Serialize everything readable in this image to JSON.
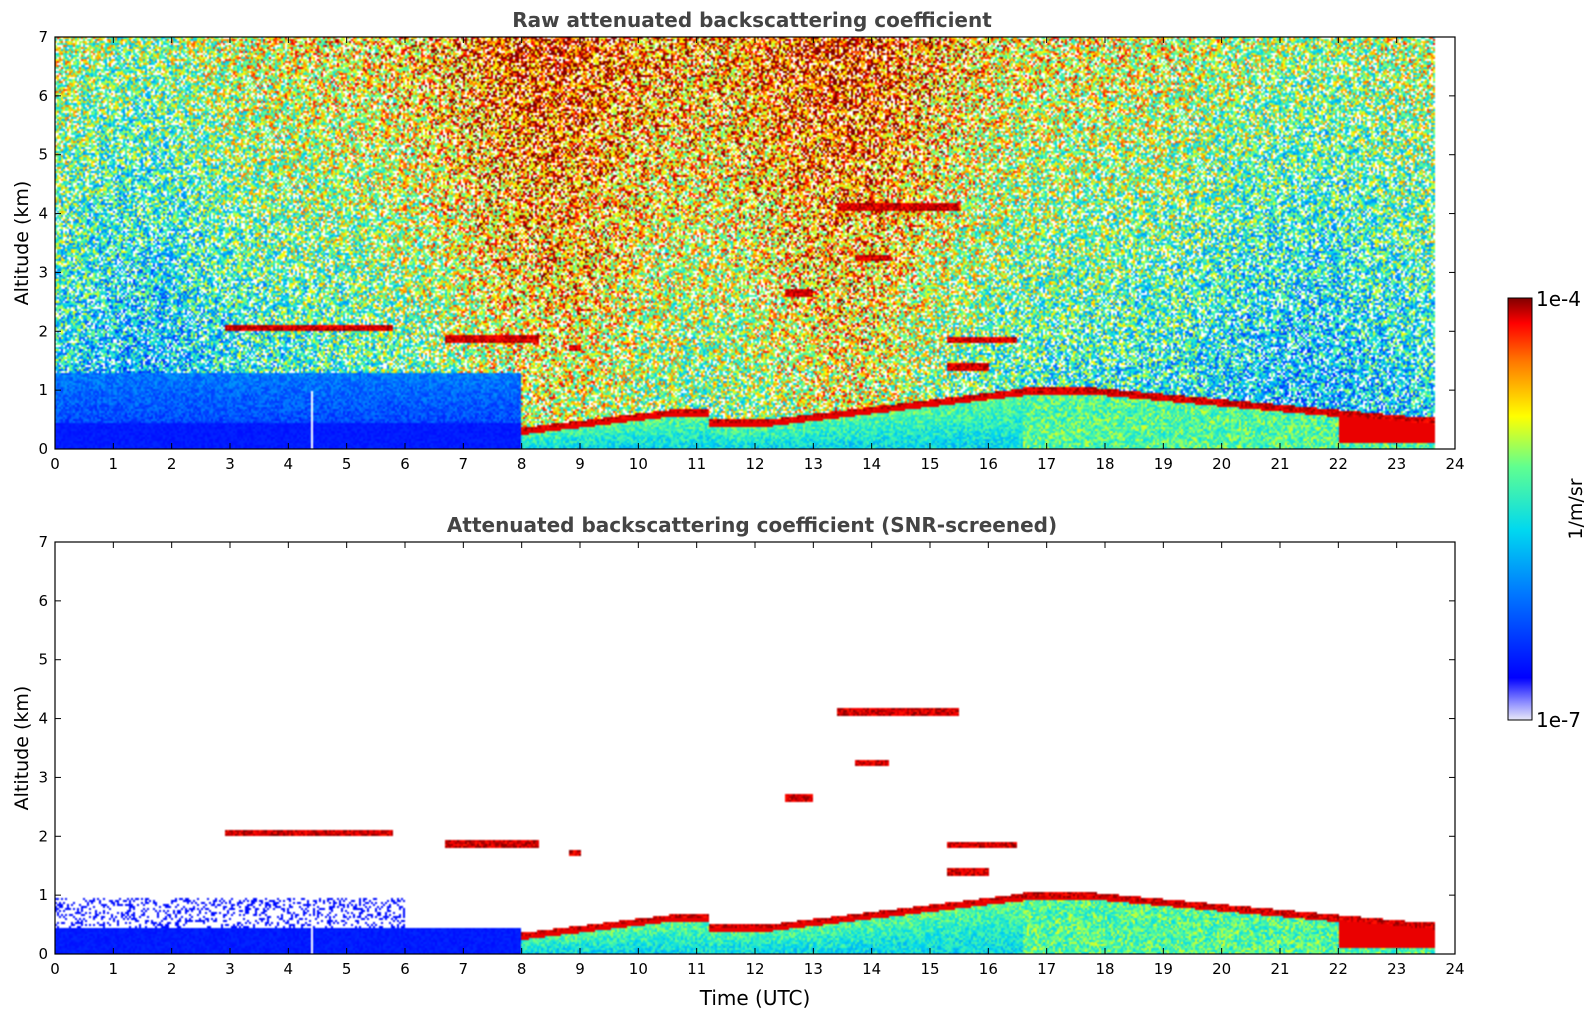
{
  "chart_data": [
    {
      "type": "heatmap",
      "title": "Raw attenuated backscattering coefficient",
      "xlabel": "",
      "ylabel": "Altitude (km)",
      "xlim": [
        0,
        24
      ],
      "ylim": [
        0,
        7
      ],
      "xticks": [
        "0",
        "1",
        "2",
        "3",
        "4",
        "5",
        "6",
        "7",
        "8",
        "9",
        "10",
        "11",
        "12",
        "13",
        "14",
        "15",
        "16",
        "17",
        "18",
        "19",
        "20",
        "21",
        "22",
        "23",
        "24"
      ],
      "yticks": [
        "0",
        "1",
        "2",
        "3",
        "4",
        "5",
        "6",
        "7"
      ],
      "data_end_time": 23.65,
      "features": [
        {
          "name": "aerosol layer",
          "t0": 2.9,
          "t1": 5.8,
          "alt": 2.05
        },
        {
          "name": "aerosol layer",
          "t0": 6.7,
          "t1": 8.3,
          "alt": 1.87
        },
        {
          "name": "small layer",
          "t0": 8.8,
          "t1": 9.0,
          "alt": 1.72
        },
        {
          "name": "cloud",
          "t0": 13.4,
          "t1": 15.5,
          "alt": 4.12
        },
        {
          "name": "cloud",
          "t0": 13.7,
          "t1": 14.3,
          "alt": 3.25
        },
        {
          "name": "cloud",
          "t0": 12.5,
          "t1": 13.0,
          "alt": 2.65
        },
        {
          "name": "cloud",
          "t0": 15.3,
          "t1": 16.5,
          "alt": 1.85
        },
        {
          "name": "cloud",
          "t0": 15.3,
          "t1": 16.0,
          "alt": 1.4
        },
        {
          "name": "boundary layer top",
          "t0": 16.6,
          "t1": 23.6,
          "alt": 0.95
        }
      ]
    },
    {
      "type": "heatmap",
      "title": "Attenuated backscattering coefficient (SNR-screened)",
      "xlabel": "Time (UTC)",
      "ylabel": "Altitude (km)",
      "xlim": [
        0,
        24
      ],
      "ylim": [
        0,
        7
      ],
      "xticks": [
        "0",
        "1",
        "2",
        "3",
        "4",
        "5",
        "6",
        "7",
        "8",
        "9",
        "10",
        "11",
        "12",
        "13",
        "14",
        "15",
        "16",
        "17",
        "18",
        "19",
        "20",
        "21",
        "22",
        "23",
        "24"
      ],
      "yticks": [
        "0",
        "1",
        "2",
        "3",
        "4",
        "5",
        "6",
        "7"
      ],
      "data_end_time": 23.65
    }
  ],
  "colorbar": {
    "label": "1/m/sr",
    "max_label": "1e-4",
    "min_label": "1e-7",
    "colors": [
      "#e8e8f8",
      "#0000ff",
      "#00a0ff",
      "#00e8e8",
      "#80ff80",
      "#ffff00",
      "#ff8000",
      "#ff0000",
      "#800000"
    ]
  }
}
